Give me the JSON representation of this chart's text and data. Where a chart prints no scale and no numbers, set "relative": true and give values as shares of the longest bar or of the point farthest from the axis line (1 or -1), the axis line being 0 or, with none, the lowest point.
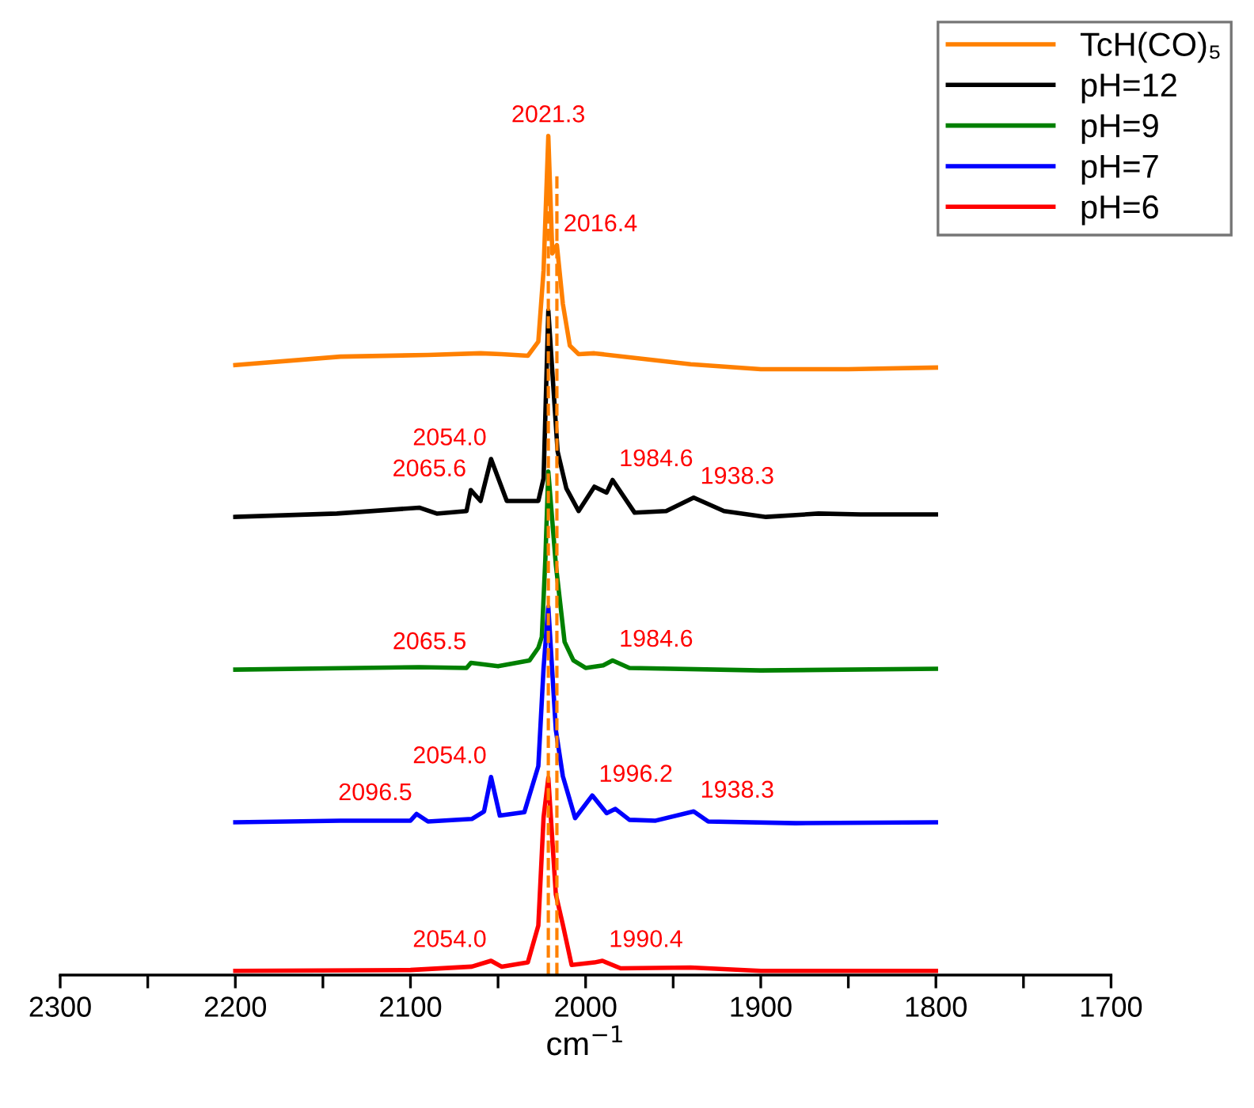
{
  "chart_data": {
    "type": "line",
    "relative": true,
    "xlabel": "cm$^{−1}$",
    "xlim": [
      2300,
      1700
    ],
    "xticks": [
      2300,
      {
        "value": 2250,
        "label": null
      },
      2200,
      {
        "value": 2150,
        "label": null
      },
      2100,
      {
        "value": 2050,
        "label": null
      },
      2000,
      {
        "value": 1950,
        "label": null
      },
      1900,
      {
        "value": 1850,
        "label": null
      },
      1800,
      {
        "value": 1750,
        "label": null
      },
      1700
    ],
    "tick_labels": "x",
    "grid": false,
    "legend": "top right",
    "line_style": "solid",
    "marker": "none",
    "series": [
      {
        "name": "TcH(CO)₅",
        "color": "#ff8000",
        "x": [
          2200,
          2140,
          2090,
          2060,
          2048,
          2033,
          2027,
          2024,
          2021.3,
          2019,
          2016.4,
          2013,
          2009,
          2004,
          1995,
          1970,
          1940,
          1900,
          1850,
          1800
        ],
        "values": [
          0.727,
          0.737,
          0.739,
          0.741,
          0.74,
          0.738,
          0.755,
          0.84,
          1.0,
          0.86,
          0.87,
          0.8,
          0.75,
          0.74,
          0.741,
          0.735,
          0.728,
          0.722,
          0.722,
          0.724
        ]
      },
      {
        "name": "pH=12",
        "color": "#000000",
        "x": [
          2200,
          2142,
          2095,
          2085,
          2068,
          2065.6,
          2060,
          2054,
          2045,
          2027,
          2024,
          2021.3,
          2016,
          2011,
          2004,
          1995,
          1988,
          1984.6,
          1972,
          1954,
          1938.3,
          1921,
          1897,
          1867,
          1843,
          1800
        ],
        "values": [
          0.546,
          0.55,
          0.557,
          0.55,
          0.553,
          0.578,
          0.565,
          0.615,
          0.565,
          0.565,
          0.592,
          0.792,
          0.624,
          0.58,
          0.553,
          0.582,
          0.575,
          0.59,
          0.551,
          0.553,
          0.569,
          0.553,
          0.546,
          0.55,
          0.549,
          0.549
        ]
      },
      {
        "name": "pH=9",
        "color": "#008000",
        "x": [
          2200,
          2130,
          2095,
          2068,
          2065.5,
          2050,
          2032,
          2027,
          2025,
          2023,
          2021.3,
          2017,
          2012,
          2007,
          2000,
          1990,
          1984.6,
          1975,
          1900,
          1800
        ],
        "values": [
          0.364,
          0.366,
          0.367,
          0.366,
          0.372,
          0.368,
          0.375,
          0.39,
          0.403,
          0.495,
          0.6,
          0.489,
          0.397,
          0.375,
          0.366,
          0.369,
          0.375,
          0.366,
          0.363,
          0.365
        ]
      },
      {
        "name": "pH=7",
        "color": "#0000ff",
        "x": [
          2200,
          2140,
          2100,
          2096.5,
          2090,
          2065,
          2058,
          2054,
          2049,
          2035,
          2027,
          2024,
          2021.3,
          2017,
          2013,
          2006,
          1996.2,
          1988,
          1983,
          1975,
          1960,
          1938.3,
          1930,
          1880,
          1800
        ],
        "values": [
          0.182,
          0.184,
          0.184,
          0.192,
          0.183,
          0.186,
          0.195,
          0.236,
          0.19,
          0.194,
          0.249,
          0.366,
          0.439,
          0.292,
          0.237,
          0.187,
          0.214,
          0.193,
          0.198,
          0.185,
          0.184,
          0.195,
          0.183,
          0.181,
          0.182
        ]
      },
      {
        "name": "pH=6",
        "color": "#ff0000",
        "x": [
          2200,
          2100,
          2065,
          2054,
          2048,
          2033,
          2027,
          2024,
          2021.3,
          2017,
          2013,
          2008,
          1995,
          1990.4,
          1980,
          1940,
          1900,
          1800
        ],
        "values": [
          0.005,
          0.006,
          0.01,
          0.017,
          0.01,
          0.015,
          0.059,
          0.188,
          0.235,
          0.096,
          0.06,
          0.012,
          0.015,
          0.017,
          0.008,
          0.009,
          0.005,
          0.005
        ]
      }
    ],
    "ref_lines": [
      {
        "axis": "x",
        "value": 2021.3,
        "color": "#ff8000",
        "line_style": "dashed"
      },
      {
        "axis": "x",
        "value": 2016.4,
        "color": "#ff8000",
        "line_style": "dashed"
      }
    ],
    "annotations": [
      {
        "text": "2021.3",
        "x": 2021.3,
        "y": 1.0
      },
      {
        "text": "2016.4",
        "x": 2016.4,
        "y": 0.87
      },
      {
        "text": "2054.0",
        "x": 2054,
        "y": 0.615
      },
      {
        "text": "2065.6",
        "x": 2065.6,
        "y": 0.578
      },
      {
        "text": "1984.6",
        "x": 1984.6,
        "y": 0.59
      },
      {
        "text": "1938.3",
        "x": 1938.3,
        "y": 0.569
      },
      {
        "text": "2065.5",
        "x": 2065.5,
        "y": 0.372
      },
      {
        "text": "1984.6",
        "x": 1984.6,
        "y": 0.375
      },
      {
        "text": "2054.0",
        "x": 2054,
        "y": 0.236
      },
      {
        "text": "1996.2",
        "x": 1996.2,
        "y": 0.214
      },
      {
        "text": "2096.5",
        "x": 2096.5,
        "y": 0.192
      },
      {
        "text": "1938.3",
        "x": 1938.3,
        "y": 0.195
      },
      {
        "text": "2054.0",
        "x": 2054,
        "y": 0.017
      },
      {
        "text": "1990.4",
        "x": 1990.4,
        "y": 0.017
      }
    ]
  }
}
